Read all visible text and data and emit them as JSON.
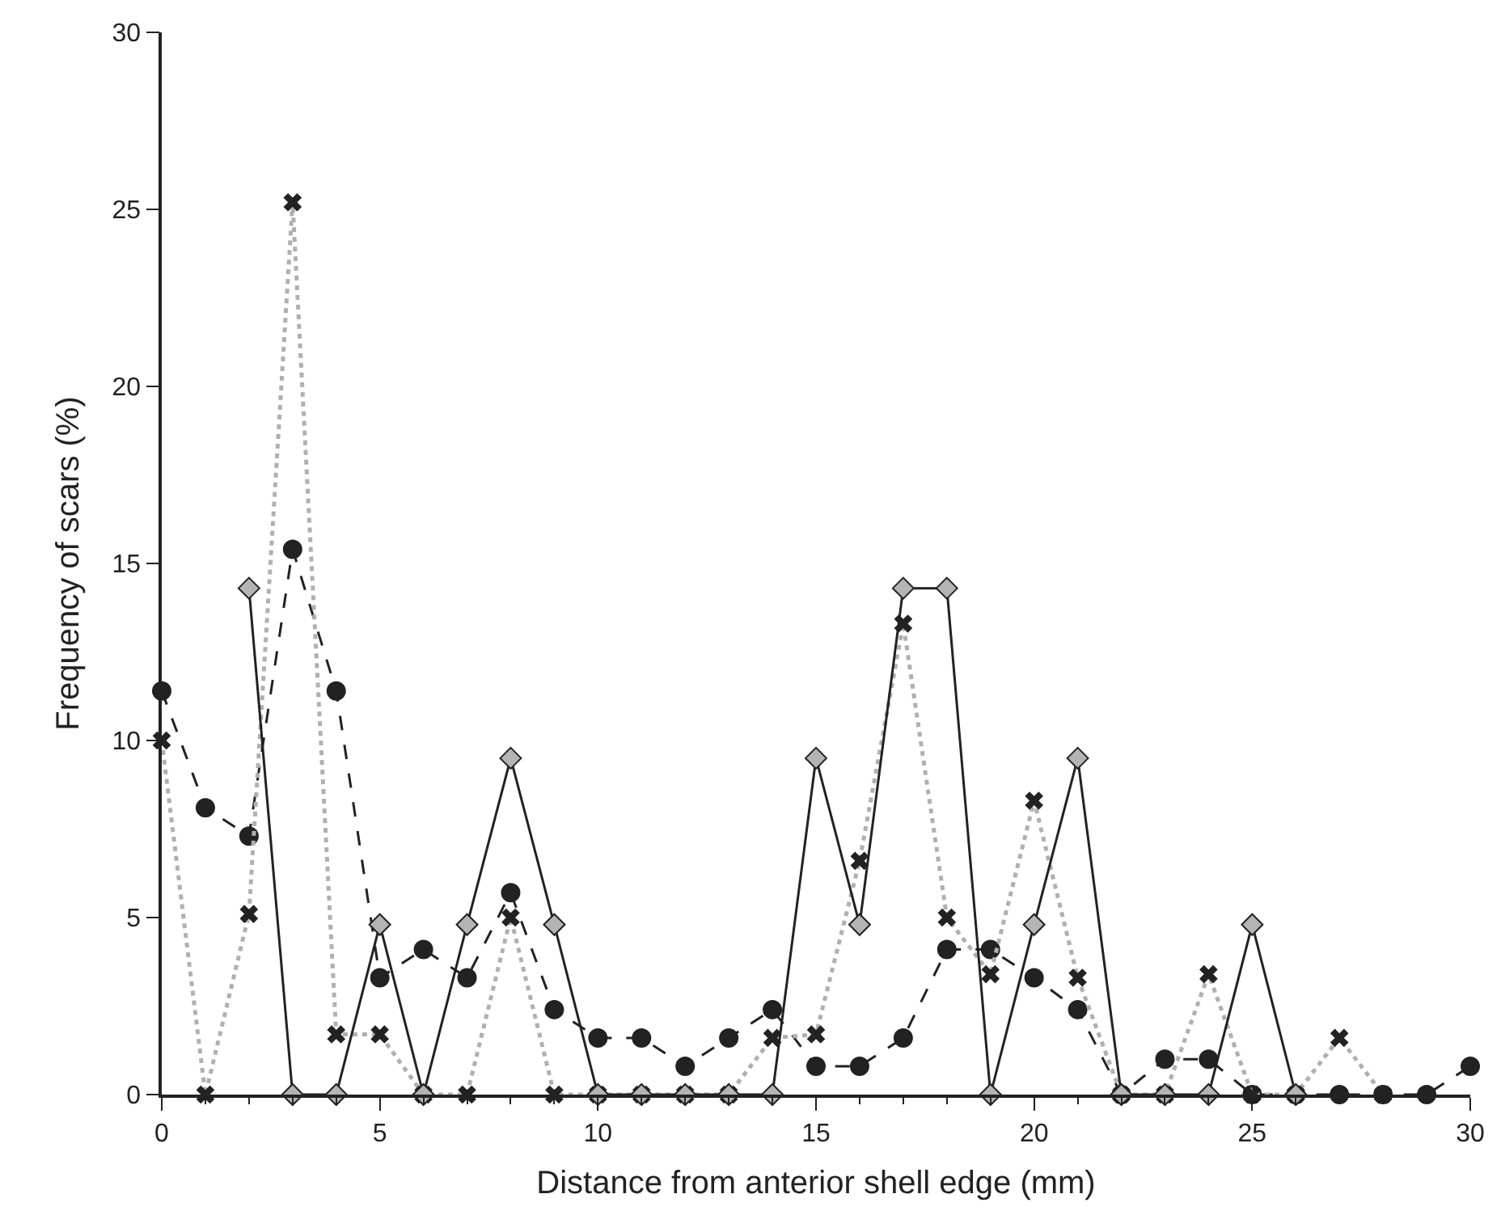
{
  "chart_data": {
    "type": "line",
    "xlabel": "Distance from anterior shell edge (mm)",
    "ylabel": "Frequency of scars (%)",
    "xlim": [
      0,
      30
    ],
    "xticks": [
      0,
      5,
      10,
      15,
      20,
      25,
      30
    ],
    "ylim": [
      0,
      30
    ],
    "yticks": [
      0,
      5,
      10,
      15,
      20,
      25,
      30
    ],
    "series": [
      {
        "color": "#222222",
        "marker": "circle",
        "line_style": "dashed",
        "x": [
          0,
          1,
          2,
          3,
          4,
          5,
          6,
          7,
          8,
          9,
          10,
          11,
          12,
          13,
          14,
          15,
          16,
          17,
          18,
          19,
          20,
          21,
          22,
          23,
          24,
          25,
          26,
          27,
          28,
          29,
          30
        ],
        "values": [
          11.4,
          8.1,
          7.3,
          15.4,
          11.4,
          3.3,
          4.1,
          3.3,
          5.7,
          2.4,
          1.6,
          1.6,
          0.8,
          1.6,
          2.4,
          0.8,
          0.8,
          1.6,
          4.1,
          4.1,
          3.3,
          2.4,
          0,
          1.0,
          1.0,
          0,
          0,
          0,
          0,
          0,
          0.8
        ]
      },
      {
        "color": "#b0b0b0",
        "marker": "cross",
        "line_style": "dotted",
        "x": [
          0,
          1,
          2,
          3,
          4,
          5,
          6,
          7,
          8,
          9,
          10,
          11,
          12,
          13,
          14,
          15,
          16,
          17,
          18,
          19,
          20,
          21,
          22,
          23,
          24,
          25,
          26,
          27,
          28
        ],
        "values": [
          10,
          0,
          5.1,
          25.2,
          1.7,
          1.7,
          0,
          0,
          5.0,
          0,
          0,
          0,
          0,
          0,
          1.6,
          1.7,
          6.6,
          13.3,
          5.0,
          3.4,
          8.3,
          3.3,
          0,
          0,
          3.4,
          0,
          0,
          1.6,
          0
        ]
      },
      {
        "color": "#222222",
        "marker": "diamond",
        "line_style": "solid",
        "x": [
          2,
          3,
          4,
          5,
          6,
          7,
          8,
          9,
          10,
          11,
          12,
          13,
          14,
          15,
          16,
          17,
          18,
          19,
          20,
          21,
          22,
          23,
          24,
          25,
          26
        ],
        "values": [
          14.3,
          0,
          0,
          4.8,
          0,
          4.8,
          9.5,
          4.8,
          0,
          0,
          0,
          0,
          0,
          9.5,
          4.8,
          14.3,
          14.3,
          0,
          4.8,
          9.5,
          0,
          0,
          0,
          4.8,
          0
        ]
      }
    ]
  }
}
